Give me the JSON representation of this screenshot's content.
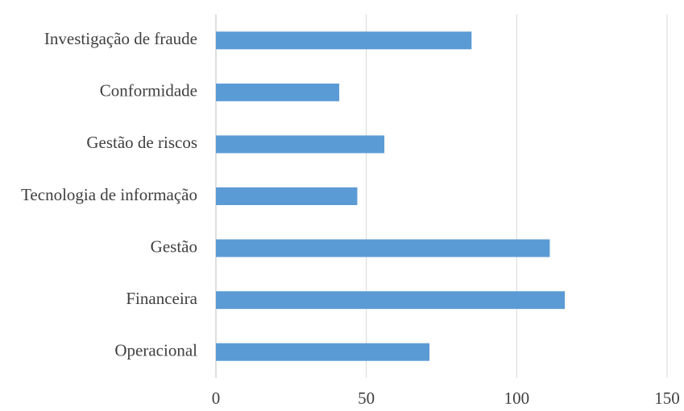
{
  "chart_data": {
    "type": "bar",
    "orientation": "horizontal",
    "categories": [
      "Investigação de fraude",
      "Conformidade",
      "Gestão de riscos",
      "Tecnologia de informação",
      "Gestão",
      "Financeira",
      "Operacional"
    ],
    "values": [
      85,
      41,
      56,
      47,
      111,
      116,
      71
    ],
    "color": "#5b9bd5",
    "xlim": [
      0,
      150
    ],
    "xticks": [
      0,
      50,
      100,
      150
    ],
    "grid": true
  }
}
